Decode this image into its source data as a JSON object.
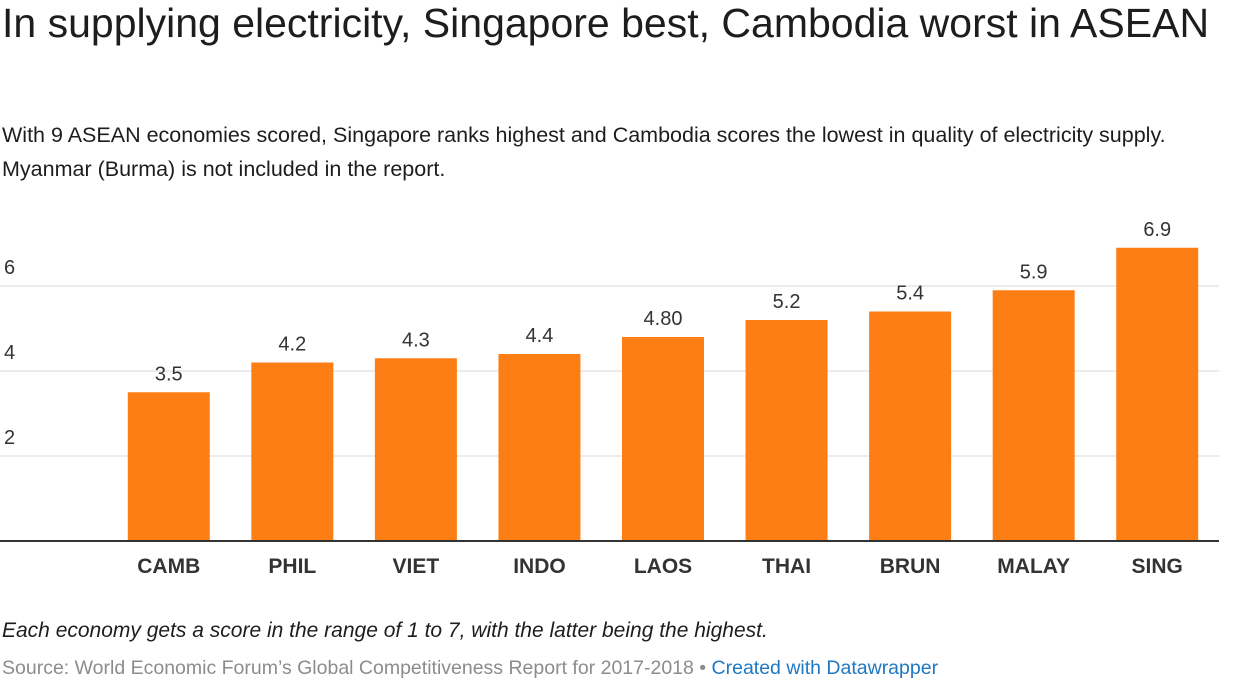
{
  "header": {
    "title": "In supplying electricity, Singapore best, Cambodia worst in ASEAN",
    "subtitle": "With 9 ASEAN economies scored, Singapore ranks highest and Cambodia scores the lowest in quality of electricity supply. Myanmar (Burma) is not included in the report."
  },
  "chart_data": {
    "type": "bar",
    "categories": [
      "CAMB",
      "PHIL",
      "VIET",
      "INDO",
      "LAOS",
      "THAI",
      "BRUN",
      "MALAY",
      "SING"
    ],
    "values": [
      3.5,
      4.2,
      4.3,
      4.4,
      4.8,
      5.2,
      5.4,
      5.9,
      6.9
    ],
    "value_labels": [
      "3.5",
      "4.2",
      "4.3",
      "4.4",
      "4.80",
      "5.2",
      "5.4",
      "5.9",
      "6.9"
    ],
    "y_ticks": [
      2,
      4,
      6
    ],
    "ylim": [
      0,
      7.5
    ],
    "grid": true,
    "bar_color": "#fd7e14"
  },
  "footer": {
    "note": "Each economy gets a score in the range of 1 to 7, with the latter being the highest.",
    "source": "Source: World Economic Forum’s Global Competitiveness Report for 2017-2018",
    "separator": " • ",
    "credit": "Created with Datawrapper"
  }
}
